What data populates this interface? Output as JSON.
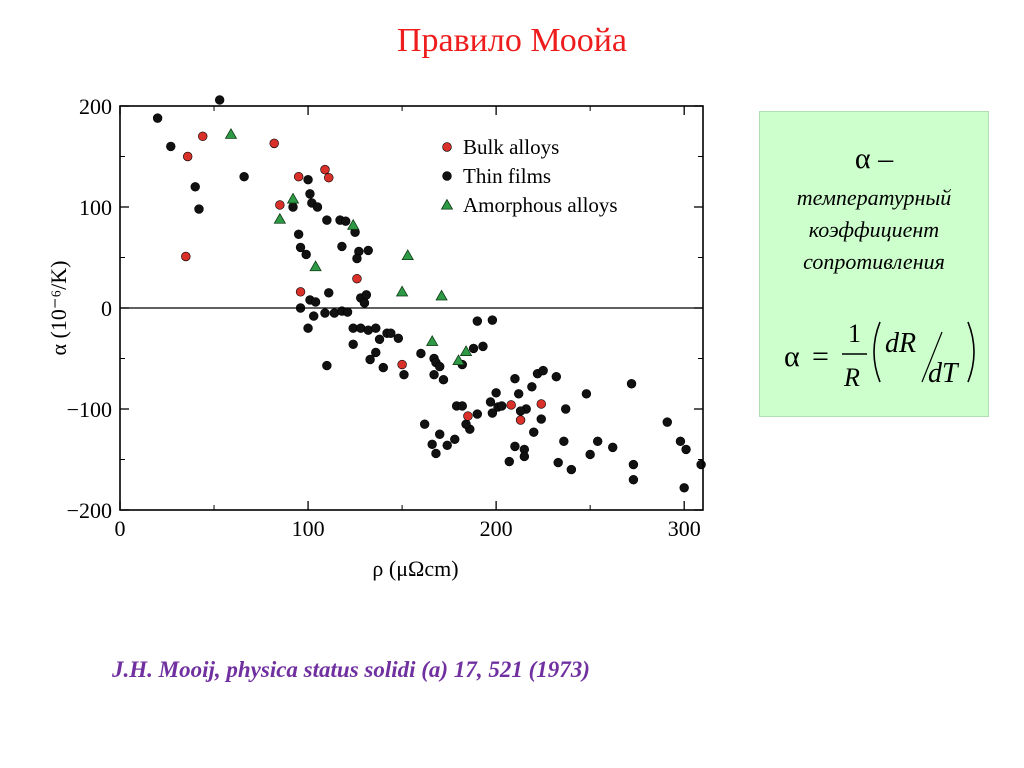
{
  "slide": {
    "title": "Правило Моойа",
    "citation": "J.H. Mooij,  physica status solidi (a)  17,  521 (1973)"
  },
  "formula_box": {
    "alpha_line": "α –",
    "desc_lines": [
      "температурный",
      "коэффициент",
      "сопротивления"
    ],
    "formula": {
      "lhs": "α",
      "eq": "=",
      "num": "1",
      "den": "R",
      "dR": "dR",
      "dT": "dT"
    }
  },
  "colors": {
    "title": "#ee1c1c",
    "citation": "#7030a0",
    "box_bg": "#ccffcc",
    "bulk": "#d9302a",
    "thin": "#111111",
    "amorphous": "#2e9a45"
  },
  "chart_data": {
    "type": "scatter",
    "xlabel": "ρ (μΩcm)",
    "ylabel": "α (10⁻⁶/K)",
    "xlim": [
      0,
      310
    ],
    "ylim": [
      -200,
      200
    ],
    "xticks": [
      0,
      100,
      200,
      300
    ],
    "yticks": [
      200,
      100,
      0,
      -100,
      -200
    ],
    "xtick_labels": [
      "0",
      "100",
      "200",
      "300"
    ],
    "ytick_labels": [
      "200",
      "100",
      "0",
      "−100",
      "−200"
    ],
    "zero_line": true,
    "legend_position": "top-right",
    "series": [
      {
        "name": "Bulk alloys",
        "marker": "circle",
        "color": "#d9302a",
        "points": [
          [
            36,
            150
          ],
          [
            44,
            170
          ],
          [
            82,
            163
          ],
          [
            95,
            130
          ],
          [
            109,
            137
          ],
          [
            111,
            129
          ],
          [
            35,
            51
          ],
          [
            85,
            102
          ],
          [
            96,
            16
          ],
          [
            126,
            29
          ],
          [
            150,
            -56
          ],
          [
            185,
            -107
          ],
          [
            208,
            -96
          ],
          [
            213,
            -111
          ],
          [
            224,
            -95
          ]
        ]
      },
      {
        "name": "Thin films",
        "marker": "circle",
        "color": "#111111",
        "points": [
          [
            20,
            188
          ],
          [
            27,
            160
          ],
          [
            53,
            206
          ],
          [
            40,
            120
          ],
          [
            42,
            98
          ],
          [
            66,
            130
          ],
          [
            92,
            100
          ],
          [
            95,
            73
          ],
          [
            96,
            60
          ],
          [
            99,
            53
          ],
          [
            100,
            127
          ],
          [
            101,
            113
          ],
          [
            102,
            104
          ],
          [
            105,
            100
          ],
          [
            110,
            87
          ],
          [
            117,
            87
          ],
          [
            120,
            86
          ],
          [
            125,
            75
          ],
          [
            127,
            56
          ],
          [
            126,
            49
          ],
          [
            132,
            57
          ],
          [
            118,
            61
          ],
          [
            96,
            0
          ],
          [
            101,
            8
          ],
          [
            104,
            6
          ],
          [
            103,
            -8
          ],
          [
            100,
            -20
          ],
          [
            109,
            -5
          ],
          [
            111,
            15
          ],
          [
            114,
            -5
          ],
          [
            118,
            -3
          ],
          [
            121,
            -4
          ],
          [
            124,
            -20
          ],
          [
            128,
            10
          ],
          [
            130,
            5
          ],
          [
            131,
            13
          ],
          [
            128,
            -20
          ],
          [
            132,
            -22
          ],
          [
            136,
            -20
          ],
          [
            138,
            -31
          ],
          [
            142,
            -25
          ],
          [
            144,
            -25
          ],
          [
            148,
            -30
          ],
          [
            124,
            -36
          ],
          [
            110,
            -57
          ],
          [
            133,
            -51
          ],
          [
            136,
            -44
          ],
          [
            140,
            -59
          ],
          [
            151,
            -66
          ],
          [
            160,
            -45
          ],
          [
            167,
            -50
          ],
          [
            168,
            -54
          ],
          [
            170,
            -58
          ],
          [
            172,
            -71
          ],
          [
            167,
            -66
          ],
          [
            182,
            -56
          ],
          [
            190,
            -13
          ],
          [
            198,
            -12
          ],
          [
            188,
            -40
          ],
          [
            193,
            -38
          ],
          [
            197,
            -93
          ],
          [
            200,
            -84
          ],
          [
            201,
            -98
          ],
          [
            198,
            -104
          ],
          [
            190,
            -105
          ],
          [
            186,
            -120
          ],
          [
            179,
            -97
          ],
          [
            182,
            -97
          ],
          [
            184,
            -115
          ],
          [
            178,
            -130
          ],
          [
            170,
            -125
          ],
          [
            174,
            -136
          ],
          [
            168,
            -144
          ],
          [
            166,
            -135
          ],
          [
            162,
            -115
          ],
          [
            203,
            -97
          ],
          [
            210,
            -70
          ],
          [
            212,
            -85
          ],
          [
            219,
            -78
          ],
          [
            222,
            -65
          ],
          [
            225,
            -62
          ],
          [
            232,
            -68
          ],
          [
            216,
            -100
          ],
          [
            213,
            -102
          ],
          [
            210,
            -137
          ],
          [
            215,
            -140
          ],
          [
            220,
            -123
          ],
          [
            215,
            -147
          ],
          [
            207,
            -152
          ],
          [
            224,
            -110
          ],
          [
            236,
            -132
          ],
          [
            237,
            -100
          ],
          [
            240,
            -160
          ],
          [
            233,
            -153
          ],
          [
            248,
            -85
          ],
          [
            250,
            -145
          ],
          [
            254,
            -132
          ],
          [
            262,
            -138
          ],
          [
            272,
            -75
          ],
          [
            273,
            -155
          ],
          [
            273,
            -170
          ],
          [
            291,
            -113
          ],
          [
            298,
            -132
          ],
          [
            301,
            -140
          ],
          [
            300,
            -178
          ],
          [
            309,
            -155
          ]
        ]
      },
      {
        "name": "Amorphous alloys",
        "marker": "triangle",
        "color": "#2e9a45",
        "points": [
          [
            59,
            172
          ],
          [
            92,
            108
          ],
          [
            85,
            88
          ],
          [
            104,
            41
          ],
          [
            124,
            82
          ],
          [
            153,
            52
          ],
          [
            150,
            16
          ],
          [
            171,
            12
          ],
          [
            166,
            -33
          ],
          [
            184,
            -43
          ],
          [
            180,
            -52
          ]
        ]
      }
    ]
  }
}
